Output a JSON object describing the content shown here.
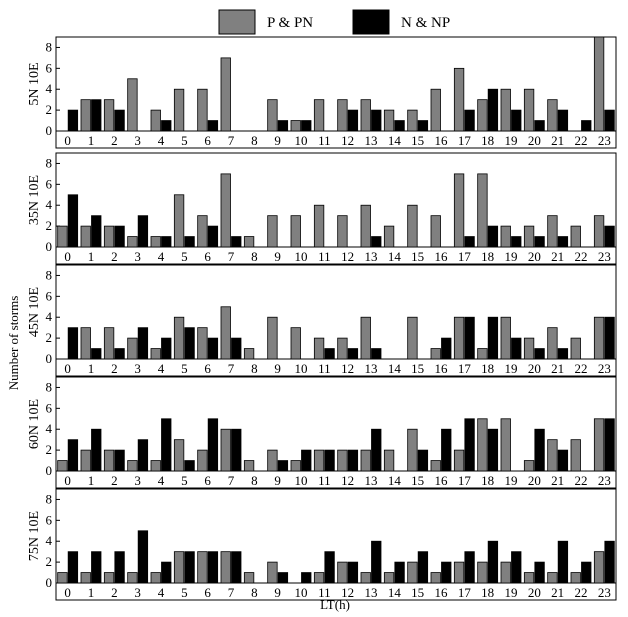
{
  "chart_data": {
    "type": "bar",
    "title": "",
    "ylabel": "Number of storms",
    "xlabel": "LT(h)",
    "legend_position": "top-center",
    "categories": [
      "0",
      "1",
      "2",
      "3",
      "4",
      "5",
      "6",
      "7",
      "8",
      "9",
      "10",
      "11",
      "12",
      "13",
      "14",
      "15",
      "16",
      "17",
      "18",
      "19",
      "20",
      "21",
      "22",
      "23"
    ],
    "yticks": [
      0,
      2,
      4,
      6,
      8
    ],
    "ylim": [
      0,
      9
    ],
    "colors": {
      "P & PN": "#808080",
      "N & NP": "#000000"
    },
    "panels": [
      {
        "label": "5N 10E",
        "series": [
          {
            "name": "P & PN",
            "values": [
              0,
              3,
              3,
              5,
              2,
              4,
              4,
              7,
              0,
              3,
              1,
              3,
              3,
              3,
              2,
              2,
              4,
              6,
              3,
              4,
              4,
              3,
              0,
              9
            ]
          },
          {
            "name": "N & NP",
            "values": [
              2,
              3,
              2,
              0,
              1,
              0,
              1,
              0,
              0,
              1,
              1,
              0,
              2,
              2,
              1,
              1,
              0,
              2,
              4,
              2,
              1,
              2,
              1,
              2
            ]
          }
        ]
      },
      {
        "label": "35N 10E",
        "series": [
          {
            "name": "P & PN",
            "values": [
              2,
              2,
              2,
              1,
              1,
              5,
              3,
              7,
              1,
              3,
              3,
              4,
              3,
              4,
              2,
              4,
              3,
              7,
              7,
              2,
              2,
              3,
              2,
              3
            ]
          },
          {
            "name": "N & NP",
            "values": [
              5,
              3,
              2,
              3,
              1,
              1,
              2,
              1,
              0,
              0,
              0,
              0,
              0,
              1,
              0,
              0,
              0,
              1,
              2,
              1,
              1,
              1,
              0,
              2
            ]
          }
        ]
      },
      {
        "label": "45N 10E",
        "series": [
          {
            "name": "P & PN",
            "values": [
              0,
              3,
              3,
              2,
              1,
              4,
              3,
              5,
              1,
              4,
              3,
              2,
              2,
              4,
              0,
              4,
              1,
              4,
              1,
              4,
              2,
              3,
              2,
              4
            ]
          },
          {
            "name": "N & NP",
            "values": [
              3,
              1,
              1,
              3,
              2,
              3,
              2,
              2,
              0,
              0,
              0,
              1,
              1,
              1,
              0,
              0,
              2,
              4,
              4,
              2,
              1,
              1,
              0,
              4
            ]
          }
        ]
      },
      {
        "label": "60N 10E",
        "series": [
          {
            "name": "P & PN",
            "values": [
              1,
              2,
              2,
              1,
              1,
              3,
              2,
              4,
              1,
              2,
              1,
              2,
              2,
              2,
              2,
              4,
              1,
              2,
              5,
              5,
              1,
              3,
              3,
              5
            ]
          },
          {
            "name": "N & NP",
            "values": [
              3,
              4,
              2,
              3,
              5,
              1,
              5,
              4,
              0,
              1,
              2,
              2,
              2,
              4,
              0,
              2,
              4,
              5,
              4,
              0,
              4,
              2,
              0,
              5
            ]
          }
        ]
      },
      {
        "label": "75N 10E",
        "series": [
          {
            "name": "P & PN",
            "values": [
              1,
              1,
              1,
              1,
              1,
              3,
              3,
              3,
              1,
              2,
              0,
              1,
              2,
              1,
              1,
              2,
              1,
              2,
              2,
              2,
              1,
              1,
              1,
              3
            ]
          },
          {
            "name": "N & NP",
            "values": [
              3,
              3,
              3,
              5,
              2,
              3,
              3,
              3,
              0,
              1,
              1,
              3,
              2,
              4,
              2,
              3,
              2,
              3,
              4,
              3,
              2,
              4,
              2,
              4
            ]
          }
        ]
      }
    ]
  }
}
